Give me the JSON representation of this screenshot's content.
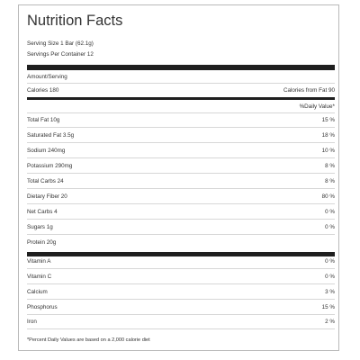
{
  "label": {
    "title": "Nutrition Facts",
    "serving_size": "Serving Size 1 Bar (62.1g)",
    "servings_per_container": "Servings Per Container 12",
    "amount_per_serving": "Amount/Serving",
    "calories": "Calories 180",
    "calories_from_fat": "Calories from Fat 90",
    "daily_value_header": "%Daily Value*",
    "nutrients": [
      {
        "name": "Total Fat 10g",
        "dv": "15 %"
      },
      {
        "name": "Saturated Fat 3.5g",
        "dv": "18 %"
      },
      {
        "name": "Sodium 240mg",
        "dv": "10 %"
      },
      {
        "name": "Potassium 290mg",
        "dv": "8 %"
      },
      {
        "name": "Total Carbs 24",
        "dv": "8 %"
      },
      {
        "name": "Dietary Fiber 20",
        "dv": "80 %"
      },
      {
        "name": "Net Carbs 4",
        "dv": "0 %"
      },
      {
        "name": "Sugars 1g",
        "dv": "0 %"
      },
      {
        "name": "Protein 20g",
        "dv": ""
      }
    ],
    "vitamins": [
      {
        "name": "Vitamin A",
        "dv": "0 %"
      },
      {
        "name": "Vitamin C",
        "dv": "0 %"
      },
      {
        "name": "Calcium",
        "dv": "3 %"
      },
      {
        "name": "Phosphorus",
        "dv": "15 %"
      },
      {
        "name": "Iron",
        "dv": "2 %"
      }
    ],
    "footnote": "*Percent Daily Values are based on a 2,000 calorie diet"
  }
}
